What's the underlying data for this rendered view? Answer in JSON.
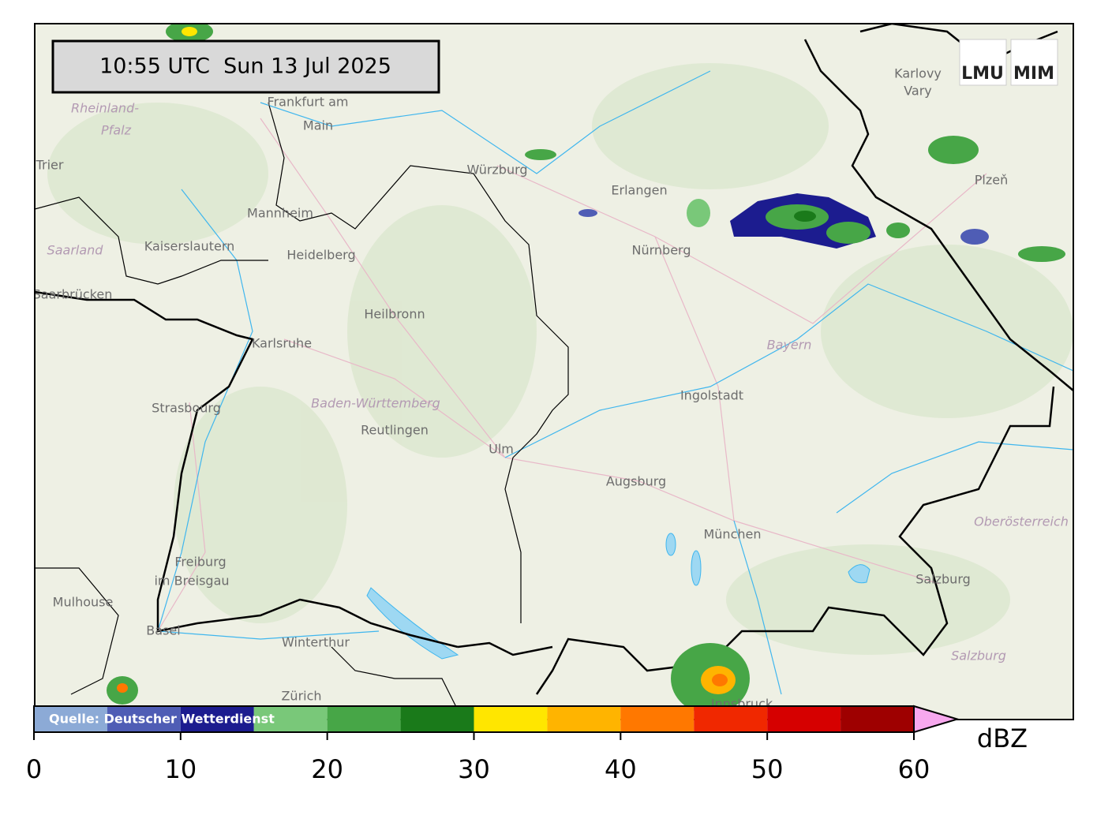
{
  "timestamp": "10:55 UTC  Sun 13 Jul 2025",
  "logos": [
    "LMU",
    "MIM"
  ],
  "places": [
    "Frankfurt am",
    "Main",
    "Rheinland-",
    "Pfalz",
    "Trier",
    "Würzburg",
    "Mannheim",
    "Kaiserslautern",
    "Heidelberg",
    "Saarland",
    "Saarbrücken",
    "Erlangen",
    "Nürnberg",
    "Karlovy",
    "Vary",
    "Plzeň",
    "Heilbronn",
    "Karlsruhe",
    "Bayern",
    "Ingolstadt",
    "Strasbourg",
    "Baden-Württemberg",
    "Reutlingen",
    "Ulm",
    "Augsburg",
    "München",
    "Oberösterreich",
    "Freiburg",
    "im Breisgau",
    "Mulhouse",
    "Salzburg",
    "Basel",
    "Winterthur",
    "Salzburg",
    "Zürich",
    "Innsbruck"
  ],
  "colorbar": {
    "source": "Quelle: Deutscher Wetterdienst",
    "label": "dBZ",
    "bounds": [
      0,
      5,
      10,
      15,
      20,
      25,
      30,
      35,
      40,
      45,
      50,
      55,
      60
    ],
    "colors": [
      "#8caad6",
      "#4f5db5",
      "#1c1c8f",
      "#79c879",
      "#47a647",
      "#1a7a1a",
      "#ffe600",
      "#ffb400",
      "#ff7800",
      "#f02800",
      "#d60000",
      "#9e0000"
    ],
    "extend_color": "#f7a8ee",
    "ticks": [
      0,
      10,
      20,
      30,
      40,
      50,
      60
    ]
  }
}
